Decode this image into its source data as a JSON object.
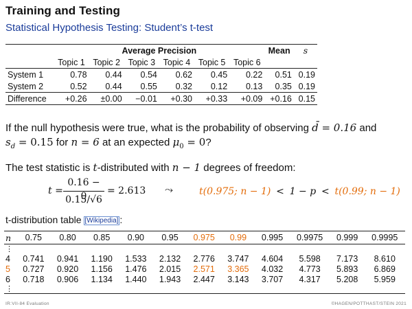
{
  "title": "Training and Testing",
  "subtitle": "Statistical Hypothesis Testing: Student’s t-test",
  "ap_table": {
    "group_header": "Average Precision",
    "mean_header": "Mean",
    "s_header": "s",
    "topics": [
      "Topic 1",
      "Topic 2",
      "Topic 3",
      "Topic 4",
      "Topic 5",
      "Topic 6"
    ],
    "rows": [
      {
        "label": "System 1",
        "values": [
          "0.78",
          "0.44",
          "0.54",
          "0.62",
          "0.45",
          "0.22"
        ],
        "mean": "0.51",
        "s": "0.19"
      },
      {
        "label": "System 2",
        "values": [
          "0.52",
          "0.44",
          "0.55",
          "0.32",
          "0.12",
          "0.13"
        ],
        "mean": "0.35",
        "s": "0.19"
      },
      {
        "label": "Difference",
        "values": [
          "+0.26",
          "±0.00",
          "−0.01",
          "+0.30",
          "+0.33",
          "+0.09"
        ],
        "mean": "+0.16",
        "s": "0.15"
      }
    ]
  },
  "question": {
    "part1": "If the null hypothesis were true, what is the probability of observing ",
    "math1": "d̄ = 0.16",
    "part2": " and",
    "math2": "s",
    "math2_sub": "d",
    "math3": " = 0.15",
    "part3": " for ",
    "math4": "n = 6",
    "part4": " at an expected ",
    "math5": "μ",
    "math5_sub": "0",
    "math6": " = 0",
    "part5": "?"
  },
  "statistic": {
    "part1": "The test statistic is ",
    "math1": "t",
    "part2": "-distributed with ",
    "math2": "n − 1",
    "part3": " degrees of freedom:"
  },
  "formula": {
    "lhs": "t =",
    "numerator": "0.16 − 0",
    "denominator": "0.15/√6",
    "result": "= 2.613",
    "tilde": "⤳",
    "lower": "t(0.975; n − 1)",
    "lt1": "<",
    "middle": "1 − p",
    "lt2": "<",
    "upper": "t(0.99; n − 1)"
  },
  "dist_table_label": "t-distribution table",
  "wiki_link": "[Wikipedia]",
  "dist_table_colon": ":",
  "dist_table": {
    "n_header": "n",
    "columns": [
      "0.75",
      "0.80",
      "0.85",
      "0.90",
      "0.95",
      "0.975",
      "0.99",
      "0.995",
      "0.9975",
      "0.999",
      "0.9995"
    ],
    "highlight_columns": [
      5,
      6
    ],
    "dots": "⋮",
    "rows": [
      {
        "n": "4",
        "values": [
          "0.741",
          "0.941",
          "1.190",
          "1.533",
          "2.132",
          "2.776",
          "3.747",
          "4.604",
          "5.598",
          "7.173",
          "8.610"
        ]
      },
      {
        "n": "5",
        "values": [
          "0.727",
          "0.920",
          "1.156",
          "1.476",
          "2.015",
          "2.571",
          "3.365",
          "4.032",
          "4.773",
          "5.893",
          "6.869"
        ]
      },
      {
        "n": "6",
        "values": [
          "0.718",
          "0.906",
          "1.134",
          "1.440",
          "1.943",
          "2.447",
          "3.143",
          "3.707",
          "4.317",
          "5.208",
          "5.959"
        ]
      }
    ],
    "highlight_row_n": "5"
  },
  "footer_left": "IR:VII-84   Evaluation",
  "footer_right": "©HAGEN/POTTHAST/STEIN 2021",
  "colors": {
    "accent_blue": "#1a3c9a",
    "highlight_orange": "#e36c0a"
  }
}
